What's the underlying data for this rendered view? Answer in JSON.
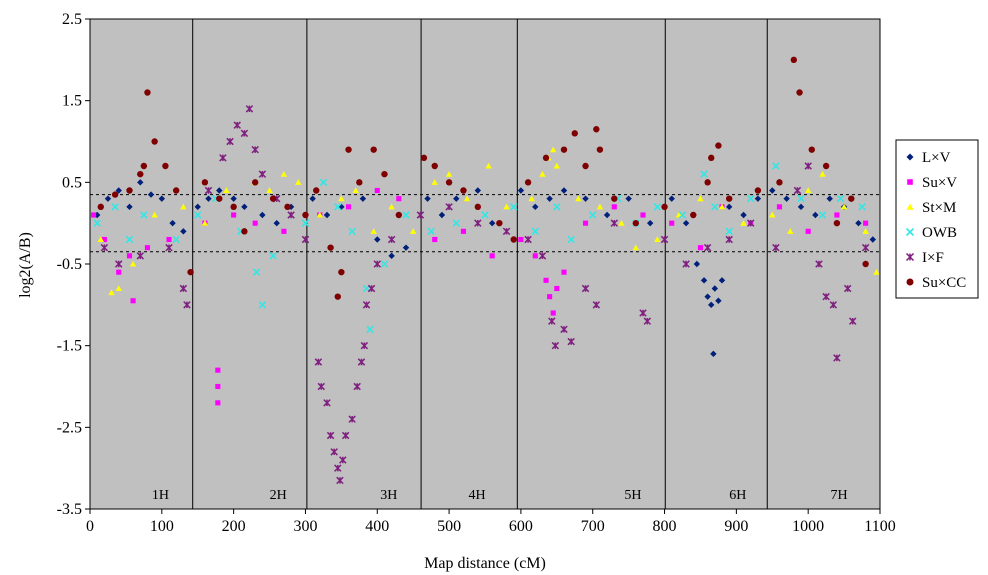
{
  "chart_data": {
    "type": "scatter",
    "title": "",
    "xlabel": "Map distance (cM)",
    "ylabel": "log2(A/B)",
    "xlim": [
      0,
      1100
    ],
    "ylim": [
      -3.5,
      2.5
    ],
    "x_ticks": [
      0,
      100,
      200,
      300,
      400,
      500,
      600,
      700,
      800,
      900,
      1000,
      1100
    ],
    "y_ticks": [
      -3.5,
      -2.5,
      -1.5,
      -0.5,
      0.5,
      1.5,
      2.5
    ],
    "threshold_lines": [
      0.35,
      -0.35
    ],
    "chromosome_boundaries": [
      143,
      302,
      461,
      595,
      801,
      943
    ],
    "chromosomes": [
      {
        "label": "1H",
        "x": 98
      },
      {
        "label": "2H",
        "x": 262
      },
      {
        "label": "3H",
        "x": 416
      },
      {
        "label": "4H",
        "x": 539
      },
      {
        "label": "5H",
        "x": 756
      },
      {
        "label": "6H",
        "x": 902
      },
      {
        "label": "7H",
        "x": 1043
      }
    ],
    "legend_position": "right",
    "plot_background": "#c0c0c0",
    "series": [
      {
        "name": "L×V",
        "color": "#00207a",
        "marker": "diamond",
        "points": [
          [
            10,
            0.1
          ],
          [
            25,
            0.3
          ],
          [
            40,
            0.4
          ],
          [
            55,
            0.2
          ],
          [
            70,
            0.5
          ],
          [
            85,
            0.35
          ],
          [
            100,
            0.3
          ],
          [
            115,
            0.0
          ],
          [
            130,
            -0.1
          ],
          [
            150,
            0.2
          ],
          [
            165,
            0.3
          ],
          [
            180,
            0.4
          ],
          [
            200,
            0.3
          ],
          [
            215,
            0.2
          ],
          [
            240,
            0.1
          ],
          [
            260,
            0.0
          ],
          [
            280,
            0.2
          ],
          [
            310,
            0.3
          ],
          [
            330,
            0.1
          ],
          [
            350,
            0.2
          ],
          [
            380,
            0.3
          ],
          [
            400,
            -0.2
          ],
          [
            420,
            -0.4
          ],
          [
            440,
            -0.3
          ],
          [
            470,
            0.3
          ],
          [
            490,
            0.1
          ],
          [
            510,
            0.3
          ],
          [
            540,
            0.4
          ],
          [
            560,
            0.0
          ],
          [
            600,
            0.4
          ],
          [
            620,
            0.2
          ],
          [
            640,
            0.3
          ],
          [
            660,
            0.4
          ],
          [
            690,
            0.3
          ],
          [
            720,
            0.1
          ],
          [
            750,
            0.3
          ],
          [
            780,
            0.0
          ],
          [
            810,
            0.3
          ],
          [
            830,
            0.0
          ],
          [
            845,
            -0.5
          ],
          [
            855,
            -0.7
          ],
          [
            860,
            -0.9
          ],
          [
            865,
            -1.0
          ],
          [
            870,
            -0.8
          ],
          [
            875,
            -0.95
          ],
          [
            880,
            -0.7
          ],
          [
            868,
            -1.6
          ],
          [
            890,
            0.2
          ],
          [
            910,
            0.1
          ],
          [
            930,
            0.3
          ],
          [
            950,
            0.4
          ],
          [
            970,
            0.3
          ],
          [
            990,
            0.2
          ],
          [
            1010,
            0.1
          ],
          [
            1030,
            0.3
          ],
          [
            1050,
            0.2
          ],
          [
            1070,
            0.0
          ],
          [
            1090,
            -0.2
          ]
        ]
      },
      {
        "name": "Su×V",
        "color": "#ff00ff",
        "marker": "square",
        "points": [
          [
            5,
            0.1
          ],
          [
            20,
            -0.2
          ],
          [
            40,
            -0.6
          ],
          [
            55,
            -0.4
          ],
          [
            60,
            -0.95
          ],
          [
            80,
            -0.3
          ],
          [
            110,
            -0.2
          ],
          [
            160,
            0.0
          ],
          [
            178,
            -1.8
          ],
          [
            178,
            -2.0
          ],
          [
            178,
            -2.2
          ],
          [
            200,
            0.1
          ],
          [
            230,
            0.0
          ],
          [
            270,
            -0.1
          ],
          [
            320,
            0.1
          ],
          [
            360,
            0.2
          ],
          [
            400,
            0.4
          ],
          [
            430,
            0.3
          ],
          [
            480,
            -0.2
          ],
          [
            520,
            -0.1
          ],
          [
            560,
            -0.4
          ],
          [
            600,
            -0.2
          ],
          [
            620,
            -0.4
          ],
          [
            635,
            -0.7
          ],
          [
            640,
            -0.9
          ],
          [
            645,
            -1.1
          ],
          [
            650,
            -0.8
          ],
          [
            660,
            -0.6
          ],
          [
            690,
            0.0
          ],
          [
            730,
            0.2
          ],
          [
            770,
            0.1
          ],
          [
            810,
            0.0
          ],
          [
            850,
            -0.3
          ],
          [
            880,
            0.2
          ],
          [
            920,
            0.0
          ],
          [
            960,
            0.2
          ],
          [
            1000,
            -0.1
          ],
          [
            1040,
            0.1
          ],
          [
            1080,
            0.0
          ]
        ]
      },
      {
        "name": "St×M",
        "color": "#ffff00",
        "marker": "triangle",
        "points": [
          [
            15,
            -0.2
          ],
          [
            30,
            -0.85
          ],
          [
            40,
            -0.8
          ],
          [
            60,
            -0.5
          ],
          [
            90,
            0.1
          ],
          [
            130,
            0.2
          ],
          [
            160,
            0.0
          ],
          [
            190,
            0.4
          ],
          [
            230,
            0.5
          ],
          [
            250,
            0.4
          ],
          [
            270,
            0.6
          ],
          [
            290,
            0.5
          ],
          [
            320,
            0.1
          ],
          [
            350,
            0.3
          ],
          [
            370,
            0.4
          ],
          [
            395,
            -0.1
          ],
          [
            420,
            0.2
          ],
          [
            450,
            -0.1
          ],
          [
            480,
            0.5
          ],
          [
            500,
            0.6
          ],
          [
            525,
            0.3
          ],
          [
            555,
            0.7
          ],
          [
            580,
            0.2
          ],
          [
            615,
            0.3
          ],
          [
            630,
            0.6
          ],
          [
            638,
            0.8
          ],
          [
            645,
            0.9
          ],
          [
            650,
            0.7
          ],
          [
            680,
            0.3
          ],
          [
            710,
            0.2
          ],
          [
            740,
            0.0
          ],
          [
            760,
            -0.3
          ],
          [
            790,
            -0.2
          ],
          [
            820,
            0.1
          ],
          [
            850,
            0.3
          ],
          [
            880,
            0.2
          ],
          [
            910,
            0.0
          ],
          [
            950,
            0.1
          ],
          [
            975,
            -0.1
          ],
          [
            1000,
            0.4
          ],
          [
            1020,
            0.6
          ],
          [
            1050,
            0.2
          ],
          [
            1080,
            -0.1
          ],
          [
            1095,
            -0.6
          ]
        ]
      },
      {
        "name": "OWB",
        "color": "#33e6e6",
        "marker": "x",
        "points": [
          [
            10,
            0.0
          ],
          [
            35,
            0.2
          ],
          [
            55,
            -0.2
          ],
          [
            75,
            0.1
          ],
          [
            120,
            -0.2
          ],
          [
            150,
            0.1
          ],
          [
            175,
            0.3
          ],
          [
            210,
            -0.1
          ],
          [
            232,
            -0.6
          ],
          [
            240,
            -1.0
          ],
          [
            255,
            -0.4
          ],
          [
            300,
            0.0
          ],
          [
            325,
            0.5
          ],
          [
            345,
            0.2
          ],
          [
            365,
            -0.1
          ],
          [
            385,
            -0.8
          ],
          [
            390,
            -1.3
          ],
          [
            410,
            -0.5
          ],
          [
            440,
            0.1
          ],
          [
            475,
            -0.1
          ],
          [
            510,
            0.0
          ],
          [
            550,
            0.1
          ],
          [
            590,
            0.2
          ],
          [
            620,
            -0.1
          ],
          [
            650,
            0.2
          ],
          [
            670,
            -0.2
          ],
          [
            700,
            0.1
          ],
          [
            735,
            0.3
          ],
          [
            760,
            0.0
          ],
          [
            790,
            0.2
          ],
          [
            825,
            0.1
          ],
          [
            855,
            0.6
          ],
          [
            870,
            0.2
          ],
          [
            890,
            -0.1
          ],
          [
            920,
            0.3
          ],
          [
            955,
            0.7
          ],
          [
            990,
            0.3
          ],
          [
            1020,
            0.1
          ],
          [
            1045,
            0.3
          ],
          [
            1075,
            0.2
          ]
        ]
      },
      {
        "name": "I×F",
        "color": "#7f1f7f",
        "marker": "star",
        "points": [
          [
            20,
            -0.3
          ],
          [
            40,
            -0.5
          ],
          [
            70,
            -0.4
          ],
          [
            110,
            -0.3
          ],
          [
            130,
            -0.8
          ],
          [
            135,
            -1.0
          ],
          [
            165,
            0.4
          ],
          [
            185,
            0.8
          ],
          [
            195,
            1.0
          ],
          [
            205,
            1.2
          ],
          [
            215,
            1.1
          ],
          [
            222,
            1.4
          ],
          [
            230,
            0.9
          ],
          [
            240,
            0.6
          ],
          [
            260,
            0.3
          ],
          [
            280,
            0.1
          ],
          [
            300,
            -0.2
          ],
          [
            318,
            -1.7
          ],
          [
            322,
            -2.0
          ],
          [
            330,
            -2.2
          ],
          [
            335,
            -2.6
          ],
          [
            340,
            -2.8
          ],
          [
            345,
            -3.0
          ],
          [
            348,
            -3.15
          ],
          [
            352,
            -2.9
          ],
          [
            356,
            -2.6
          ],
          [
            365,
            -2.4
          ],
          [
            372,
            -2.0
          ],
          [
            378,
            -1.7
          ],
          [
            382,
            -1.5
          ],
          [
            385,
            -1.0
          ],
          [
            392,
            -0.8
          ],
          [
            400,
            -0.5
          ],
          [
            420,
            -0.2
          ],
          [
            460,
            0.1
          ],
          [
            500,
            0.2
          ],
          [
            540,
            0.0
          ],
          [
            580,
            -0.1
          ],
          [
            610,
            -0.2
          ],
          [
            630,
            -0.4
          ],
          [
            643,
            -1.2
          ],
          [
            648,
            -1.5
          ],
          [
            660,
            -1.3
          ],
          [
            670,
            -1.45
          ],
          [
            690,
            -0.8
          ],
          [
            705,
            -1.0
          ],
          [
            730,
            0.0
          ],
          [
            770,
            -1.1
          ],
          [
            776,
            -1.2
          ],
          [
            800,
            -0.2
          ],
          [
            830,
            -0.5
          ],
          [
            860,
            -0.3
          ],
          [
            890,
            -0.2
          ],
          [
            920,
            0.0
          ],
          [
            955,
            -0.3
          ],
          [
            985,
            0.4
          ],
          [
            1000,
            0.7
          ],
          [
            1015,
            -0.5
          ],
          [
            1025,
            -0.9
          ],
          [
            1035,
            -1.0
          ],
          [
            1040,
            -1.65
          ],
          [
            1055,
            -0.8
          ],
          [
            1062,
            -1.2
          ],
          [
            1080,
            -0.3
          ]
        ]
      },
      {
        "name": "Su×CC",
        "color": "#7f0000",
        "marker": "circle",
        "points": [
          [
            15,
            0.2
          ],
          [
            35,
            0.35
          ],
          [
            55,
            0.4
          ],
          [
            70,
            0.6
          ],
          [
            75,
            0.7
          ],
          [
            80,
            1.6
          ],
          [
            90,
            1.0
          ],
          [
            105,
            0.7
          ],
          [
            120,
            0.4
          ],
          [
            140,
            -0.6
          ],
          [
            160,
            0.5
          ],
          [
            180,
            0.3
          ],
          [
            200,
            0.2
          ],
          [
            215,
            -0.1
          ],
          [
            230,
            0.5
          ],
          [
            255,
            0.3
          ],
          [
            275,
            0.2
          ],
          [
            300,
            0.1
          ],
          [
            315,
            0.4
          ],
          [
            335,
            -0.3
          ],
          [
            345,
            -0.9
          ],
          [
            350,
            -0.6
          ],
          [
            360,
            0.9
          ],
          [
            375,
            0.5
          ],
          [
            395,
            0.9
          ],
          [
            410,
            0.6
          ],
          [
            430,
            0.1
          ],
          [
            465,
            0.8
          ],
          [
            480,
            0.7
          ],
          [
            500,
            0.5
          ],
          [
            520,
            0.4
          ],
          [
            540,
            0.2
          ],
          [
            570,
            0.0
          ],
          [
            590,
            -0.2
          ],
          [
            610,
            0.5
          ],
          [
            635,
            0.8
          ],
          [
            660,
            0.9
          ],
          [
            675,
            1.1
          ],
          [
            690,
            0.7
          ],
          [
            705,
            1.15
          ],
          [
            710,
            0.9
          ],
          [
            730,
            0.3
          ],
          [
            760,
            0.0
          ],
          [
            800,
            0.2
          ],
          [
            840,
            0.1
          ],
          [
            860,
            0.5
          ],
          [
            865,
            0.8
          ],
          [
            875,
            0.95
          ],
          [
            890,
            0.3
          ],
          [
            930,
            0.4
          ],
          [
            960,
            0.5
          ],
          [
            980,
            2.0
          ],
          [
            988,
            1.6
          ],
          [
            1005,
            0.9
          ],
          [
            1025,
            0.7
          ],
          [
            1040,
            0.0
          ],
          [
            1060,
            0.3
          ],
          [
            1080,
            -0.5
          ]
        ]
      }
    ]
  }
}
